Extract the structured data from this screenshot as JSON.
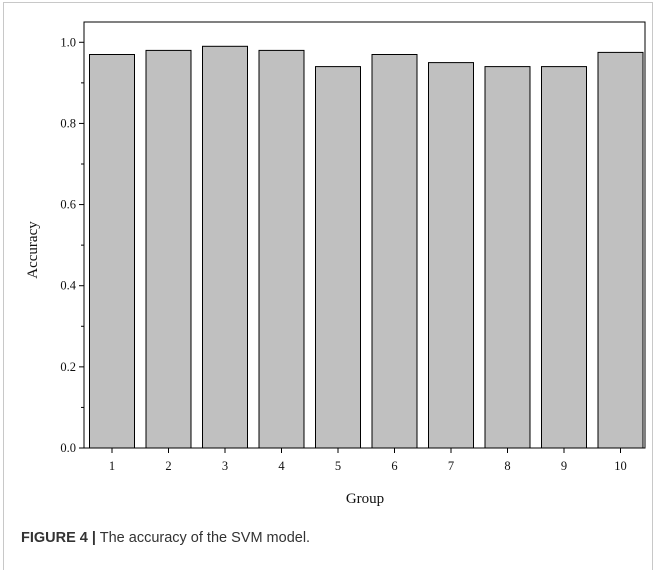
{
  "chart_data": {
    "type": "bar",
    "categories": [
      "1",
      "2",
      "3",
      "4",
      "5",
      "6",
      "7",
      "8",
      "9",
      "10"
    ],
    "values": [
      0.97,
      0.98,
      0.99,
      0.98,
      0.94,
      0.97,
      0.95,
      0.94,
      0.94,
      0.975
    ],
    "xlabel": "Group",
    "ylabel": "Accuracy",
    "ylim": [
      0,
      1.05
    ],
    "yticks": [
      "0.0",
      "0.2",
      "0.4",
      "0.6",
      "0.8",
      "1.0"
    ],
    "grid": false,
    "colors": {
      "bar_fill": "#c0c0c0",
      "bar_stroke": "#000000"
    }
  },
  "caption": {
    "label": "FIGURE 4 |",
    "text": " The accuracy of the SVM model."
  }
}
